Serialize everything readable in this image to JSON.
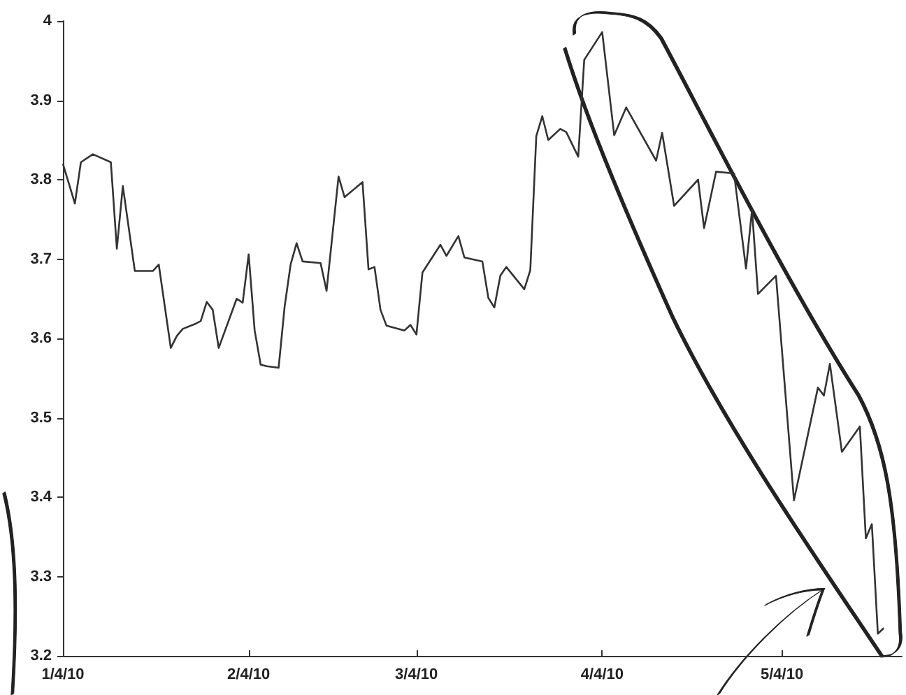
{
  "chart_data": {
    "type": "line",
    "x": [
      "2010-01-04",
      "2010-01-06",
      "2010-01-07",
      "2010-01-09",
      "2010-01-12",
      "2010-01-13",
      "2010-01-14",
      "2010-01-16",
      "2010-01-19",
      "2010-01-20",
      "2010-01-22",
      "2010-01-23",
      "2010-01-24",
      "2010-01-26",
      "2010-01-27",
      "2010-01-28",
      "2010-01-29",
      "2010-01-30",
      "2010-02-02",
      "2010-02-03",
      "2010-02-04",
      "2010-02-05",
      "2010-02-06",
      "2010-02-07",
      "2010-02-09",
      "2010-02-10",
      "2010-02-11",
      "2010-02-12",
      "2010-02-13",
      "2010-02-16",
      "2010-02-17",
      "2010-02-19",
      "2010-02-20",
      "2010-02-23",
      "2010-02-24",
      "2010-02-25",
      "2010-02-26",
      "2010-02-27",
      "2010-03-02",
      "2010-03-03",
      "2010-03-04",
      "2010-03-05",
      "2010-03-08",
      "2010-03-09",
      "2010-03-11",
      "2010-03-12",
      "2010-03-15",
      "2010-03-16",
      "2010-03-17",
      "2010-03-18",
      "2010-03-19",
      "2010-03-22",
      "2010-03-23",
      "2010-03-24",
      "2010-03-25",
      "2010-03-26",
      "2010-03-28",
      "2010-03-29",
      "2010-03-31",
      "2010-04-01",
      "2010-04-04",
      "2010-04-06",
      "2010-04-08",
      "2010-04-13",
      "2010-04-14",
      "2010-04-16",
      "2010-04-20",
      "2010-04-21",
      "2010-04-23",
      "2010-04-26",
      "2010-04-28",
      "2010-04-29",
      "2010-04-30",
      "2010-05-03",
      "2010-05-06",
      "2010-05-10",
      "2010-05-11",
      "2010-05-12",
      "2010-05-14",
      "2010-05-17",
      "2010-05-18",
      "2010-05-19",
      "2010-05-20",
      "2010-05-21"
    ],
    "series": [
      {
        "color": "#333333",
        "values": [
          3.82,
          3.77,
          3.822,
          3.832,
          3.822,
          3.713,
          3.792,
          3.685,
          3.685,
          3.693,
          3.588,
          3.603,
          3.612,
          3.618,
          3.622,
          3.646,
          3.636,
          3.588,
          3.65,
          3.645,
          3.706,
          3.61,
          3.567,
          3.565,
          3.563,
          3.64,
          3.693,
          3.72,
          3.697,
          3.695,
          3.66,
          3.804,
          3.778,
          3.797,
          3.687,
          3.69,
          3.636,
          3.616,
          3.61,
          3.617,
          3.605,
          3.683,
          3.718,
          3.704,
          3.729,
          3.702,
          3.697,
          3.651,
          3.639,
          3.679,
          3.69,
          3.662,
          3.686,
          3.855,
          3.88,
          3.85,
          3.864,
          3.86,
          3.829,
          3.951,
          3.986,
          3.856,
          3.891,
          3.824,
          3.859,
          3.767,
          3.8,
          3.739,
          3.81,
          3.808,
          3.688,
          3.762,
          3.656,
          3.679,
          3.396,
          3.538,
          3.528,
          3.568,
          3.457,
          3.489,
          3.348,
          3.366,
          3.228,
          3.235
        ]
      }
    ],
    "xlim": [
      "2010-01-04",
      "2010-05-24"
    ],
    "xticks": [
      {
        "value": "2010-01-04",
        "label": "1/4/10"
      },
      {
        "value": "2010-02-04",
        "label": "2/4/10"
      },
      {
        "value": "2010-03-04",
        "label": "3/4/10"
      },
      {
        "value": "2010-04-04",
        "label": "4/4/10"
      },
      {
        "value": "2010-05-04",
        "label": "5/4/10"
      }
    ],
    "ylim": [
      3.2,
      4
    ],
    "yticks": [
      3.2,
      3.3,
      3.4,
      3.5,
      3.6,
      3.7,
      3.8,
      3.9,
      4
    ],
    "grid": false,
    "marker": "none",
    "line_style": "solid"
  }
}
